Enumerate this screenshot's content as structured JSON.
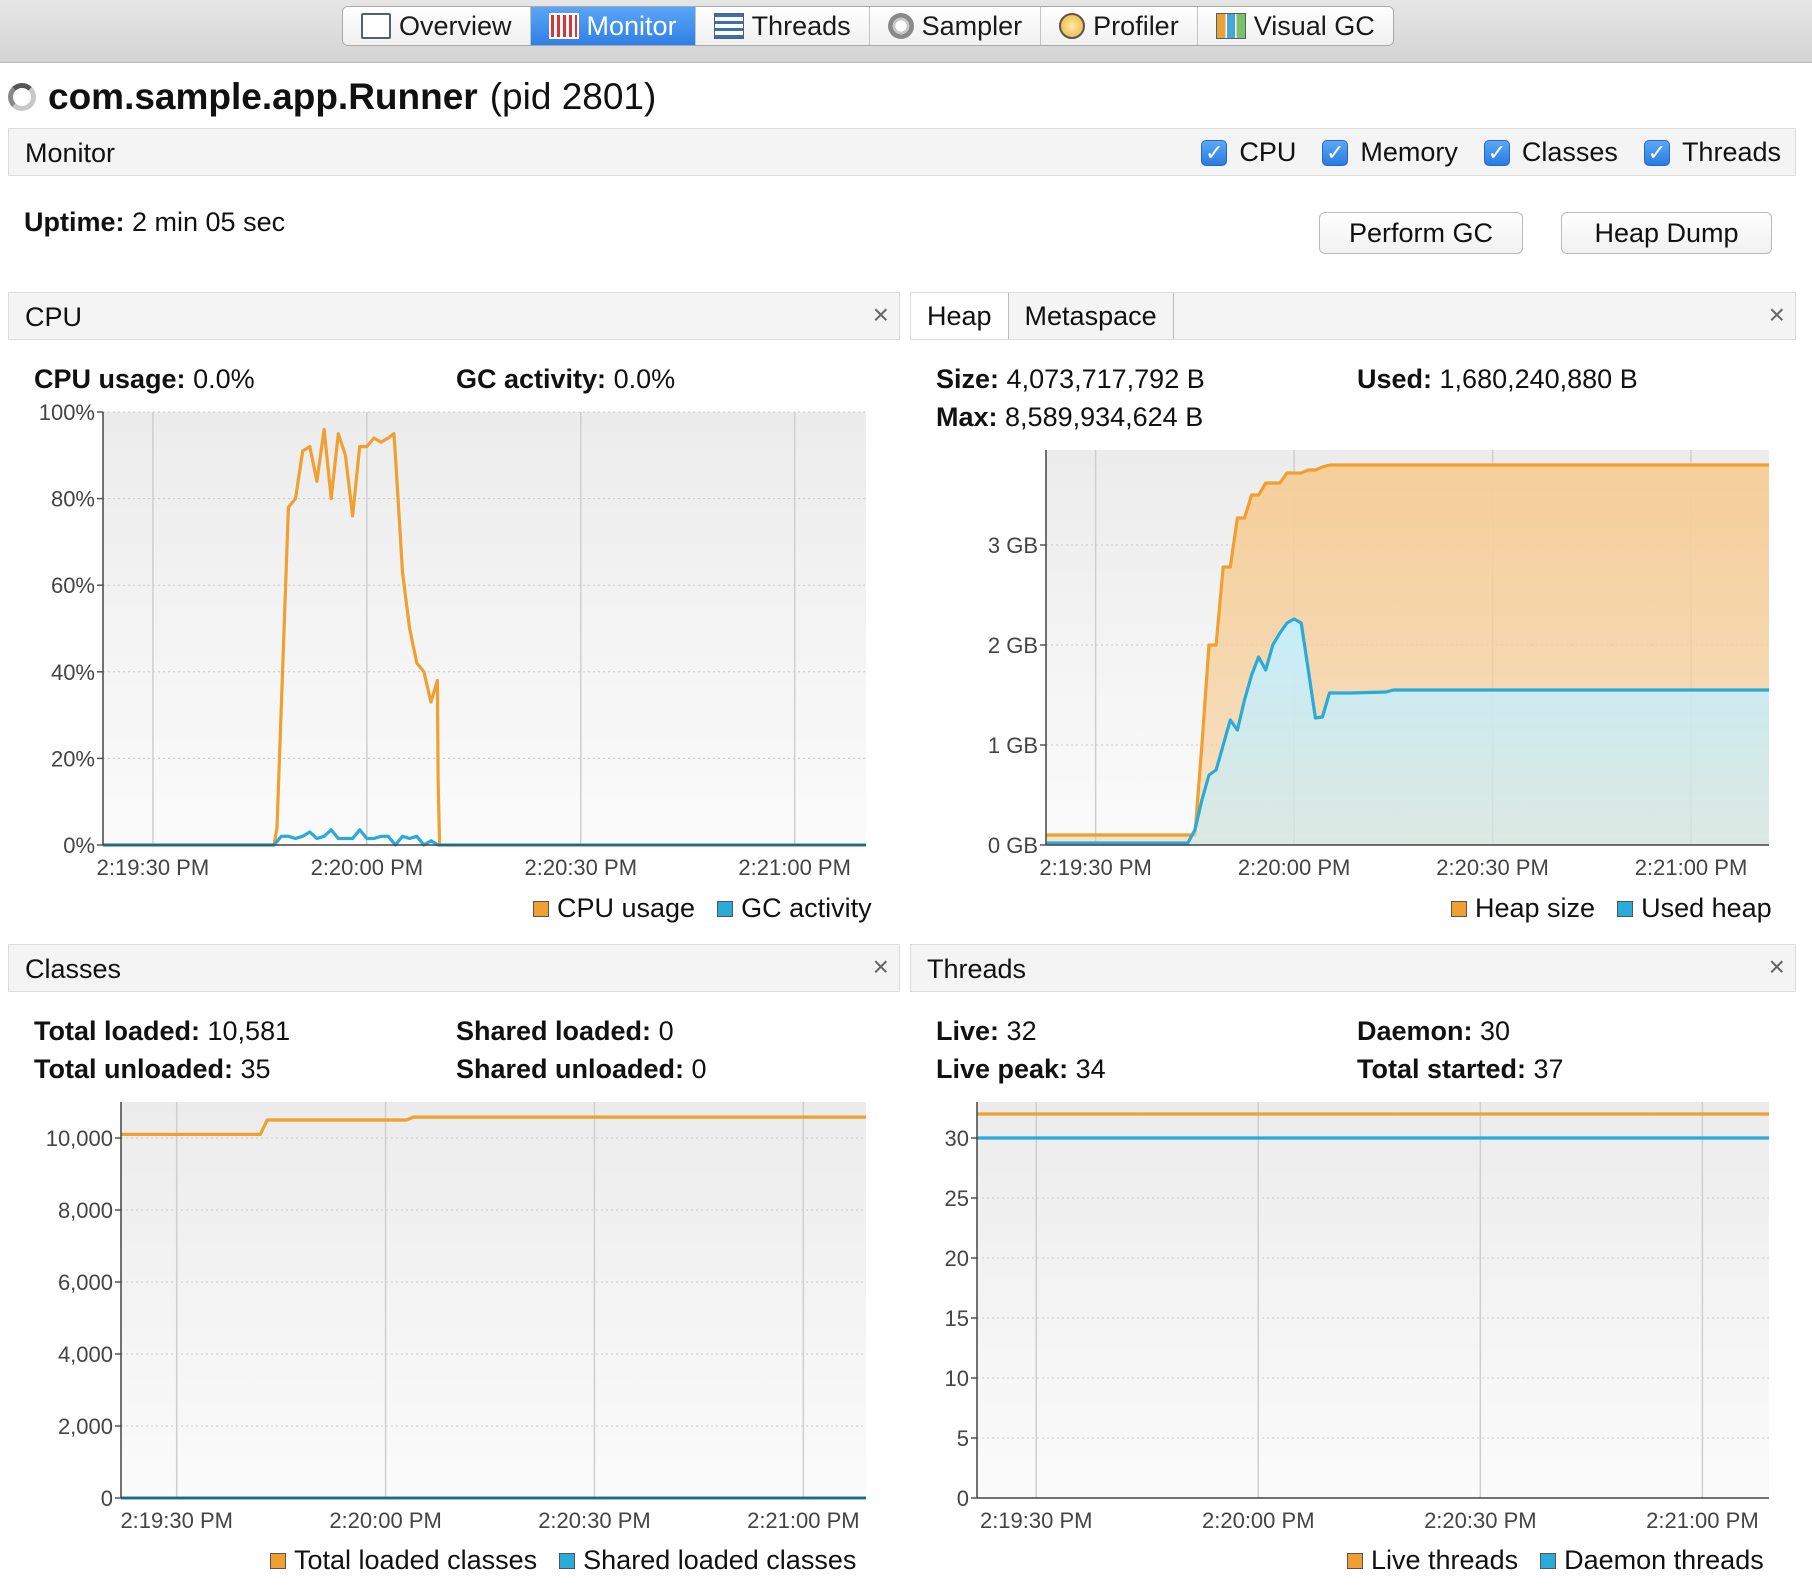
{
  "colors": {
    "orange": "#f0a030",
    "blue": "#2aaad8",
    "orange_fill": "#f6cf9a",
    "blue_fill": "#c6eefb"
  },
  "tabs": [
    {
      "label": "Overview",
      "icon": "overview-icon",
      "active": false
    },
    {
      "label": "Monitor",
      "icon": "monitor-icon",
      "active": true
    },
    {
      "label": "Threads",
      "icon": "threads-icon",
      "active": false
    },
    {
      "label": "Sampler",
      "icon": "sampler-icon",
      "active": false
    },
    {
      "label": "Profiler",
      "icon": "profiler-icon",
      "active": false
    },
    {
      "label": "Visual GC",
      "icon": "visual-gc-icon",
      "active": false
    }
  ],
  "app": {
    "name": "com.sample.app.Runner",
    "pid": "(pid 2801)"
  },
  "monitor_bar": {
    "label": "Monitor",
    "checks": [
      {
        "label": "CPU",
        "checked": true
      },
      {
        "label": "Memory",
        "checked": true
      },
      {
        "label": "Classes",
        "checked": true
      },
      {
        "label": "Threads",
        "checked": true
      }
    ]
  },
  "uptime": {
    "label": "Uptime:",
    "value": "2 min 05 sec"
  },
  "buttons": {
    "gc": "Perform GC",
    "heap_dump": "Heap Dump"
  },
  "close_glyph": "×",
  "cpu_panel": {
    "title": "CPU",
    "stats": {
      "usage_label": "CPU usage:",
      "usage_value": "0.0%",
      "gc_label": "GC activity:",
      "gc_value": "0.0%"
    }
  },
  "heap_panel": {
    "tabs": [
      "Heap",
      "Metaspace"
    ],
    "stats": {
      "size_label": "Size:",
      "size_value": "4,073,717,792 B",
      "used_label": "Used:",
      "used_value": "1,680,240,880 B",
      "max_label": "Max:",
      "max_value": "8,589,934,624 B"
    }
  },
  "classes_panel": {
    "title": "Classes",
    "stats": {
      "total_loaded_label": "Total loaded:",
      "total_loaded_value": "10,581",
      "shared_loaded_label": "Shared loaded:",
      "shared_loaded_value": "0",
      "total_unloaded_label": "Total unloaded:",
      "total_unloaded_value": "35",
      "shared_unloaded_label": "Shared unloaded:",
      "shared_unloaded_value": "0"
    }
  },
  "threads_panel": {
    "title": "Threads",
    "stats": {
      "live_label": "Live:",
      "live_value": "32",
      "daemon_label": "Daemon:",
      "daemon_value": "30",
      "peak_label": "Live peak:",
      "peak_value": "34",
      "started_label": "Total started:",
      "started_value": "37"
    }
  },
  "chart_data": [
    {
      "id": "cpu",
      "type": "line",
      "xlim": [
        -30,
        77
      ],
      "ylim": [
        0,
        100
      ],
      "y_ticks": [
        0,
        20,
        40,
        60,
        80,
        100
      ],
      "y_tick_labels": [
        "0%",
        "20%",
        "40%",
        "60%",
        "80%",
        "100%"
      ],
      "x_ticks": [
        -23,
        7,
        37,
        67
      ],
      "x_tick_labels": [
        "2:19:30 PM",
        "2:20:00 PM",
        "2:20:30 PM",
        "2:21:00 PM"
      ],
      "series": [
        {
          "name": "CPU usage",
          "color": "#f0a030",
          "fill": false,
          "x": [
            -30,
            -6,
            -5.6,
            -4,
            -3,
            -2,
            -1,
            0,
            1,
            2,
            3,
            4,
            5,
            6,
            7,
            8,
            9,
            10,
            10.8,
            11,
            12,
            13,
            14,
            15,
            16,
            16.9,
            17,
            17.2
          ],
          "y": [
            0,
            0,
            4,
            78,
            80,
            91,
            92,
            84,
            96,
            80,
            95,
            90,
            76,
            92,
            92,
            94,
            93,
            94,
            95,
            90,
            63,
            50,
            42,
            40,
            33,
            38,
            15,
            0
          ]
        },
        {
          "name": "GC activity",
          "color": "#2aaad8",
          "fill": false,
          "x": [
            -30,
            -6,
            -5,
            -4,
            -3,
            -2,
            -1,
            0,
            1,
            2,
            3,
            4,
            5,
            6,
            7,
            8,
            9,
            10,
            11,
            12,
            13,
            14,
            15,
            16,
            17,
            77
          ],
          "y": [
            0,
            0,
            2,
            2,
            1.5,
            2,
            3,
            1.5,
            2,
            3.5,
            1.5,
            1.5,
            1.5,
            3.5,
            1.5,
            1.5,
            2,
            2,
            0,
            2,
            1.5,
            2,
            0,
            1,
            0,
            0
          ]
        }
      ]
    },
    {
      "id": "heap",
      "type": "area",
      "xlim": [
        -30,
        72
      ],
      "ylim": [
        0,
        3.95
      ],
      "y_ticks": [
        0,
        1,
        2,
        3
      ],
      "y_tick_labels": [
        "0 GB",
        "1 GB",
        "2 GB",
        "3 GB"
      ],
      "x_ticks": [
        -23,
        5,
        33,
        61
      ],
      "x_tick_labels": [
        "2:19:30 PM",
        "2:20:00 PM",
        "2:20:30 PM",
        "2:21:00 PM"
      ],
      "series": [
        {
          "name": "Heap size",
          "color": "#f0a030",
          "fill": true,
          "fill_color": "#f6cf9a",
          "x": [
            -30,
            -9,
            -8,
            -7,
            -6,
            -5,
            -4,
            -3,
            -2,
            -1,
            0,
            1,
            2,
            3,
            4,
            5,
            6,
            7,
            8,
            9,
            10,
            11,
            12,
            13,
            72
          ],
          "y": [
            0.1,
            0.1,
            1.0,
            2.0,
            2.0,
            2.78,
            2.78,
            3.27,
            3.27,
            3.5,
            3.5,
            3.62,
            3.62,
            3.62,
            3.72,
            3.72,
            3.72,
            3.75,
            3.75,
            3.78,
            3.8,
            3.8,
            3.8,
            3.8,
            3.8
          ]
        },
        {
          "name": "Used heap",
          "color": "#2aaad8",
          "fill": true,
          "fill_color": "#c6eefb",
          "x": [
            -30,
            -10,
            -9,
            -8,
            -7,
            -6,
            -5,
            -4,
            -3,
            -2,
            -1,
            0,
            1,
            2,
            3,
            4,
            5,
            6,
            7,
            8,
            9,
            10,
            11,
            12,
            13,
            18,
            19,
            72
          ],
          "y": [
            0.02,
            0.02,
            0.15,
            0.45,
            0.7,
            0.75,
            1.0,
            1.25,
            1.15,
            1.45,
            1.7,
            1.88,
            1.75,
            2.0,
            2.12,
            2.22,
            2.26,
            2.22,
            1.75,
            1.27,
            1.28,
            1.52,
            1.52,
            1.52,
            1.52,
            1.53,
            1.55,
            1.55
          ]
        }
      ]
    },
    {
      "id": "classes",
      "type": "line",
      "xlim": [
        -30,
        77
      ],
      "ylim": [
        0,
        11000
      ],
      "y_ticks": [
        0,
        2000,
        4000,
        6000,
        8000,
        10000
      ],
      "y_tick_labels": [
        "0",
        "2,000",
        "4,000",
        "6,000",
        "8,000",
        "10,000"
      ],
      "x_ticks": [
        -22,
        8,
        38,
        68
      ],
      "x_tick_labels": [
        "2:19:30 PM",
        "2:20:00 PM",
        "2:20:30 PM",
        "2:21:00 PM"
      ],
      "series": [
        {
          "name": "Total loaded classes",
          "color": "#f0a030",
          "fill": false,
          "x": [
            -30,
            -10,
            -9,
            11,
            12,
            77
          ],
          "y": [
            10100,
            10100,
            10500,
            10500,
            10581,
            10581
          ]
        },
        {
          "name": "Shared loaded classes",
          "color": "#2aaad8",
          "fill": false,
          "x": [
            -30,
            77
          ],
          "y": [
            0,
            0
          ]
        }
      ]
    },
    {
      "id": "threads",
      "type": "line",
      "xlim": [
        -30,
        77
      ],
      "ylim": [
        0,
        33
      ],
      "y_ticks": [
        0,
        5,
        10,
        15,
        20,
        25,
        30
      ],
      "y_tick_labels": [
        "0",
        "5",
        "10",
        "15",
        "20",
        "25",
        "30"
      ],
      "x_ticks": [
        -22,
        8,
        38,
        68
      ],
      "x_tick_labels": [
        "2:19:30 PM",
        "2:20:00 PM",
        "2:20:30 PM",
        "2:21:00 PM"
      ],
      "series": [
        {
          "name": "Live threads",
          "color": "#f0a030",
          "fill": false,
          "x": [
            -30,
            77
          ],
          "y": [
            32,
            32
          ]
        },
        {
          "name": "Daemon threads",
          "color": "#2aaad8",
          "fill": false,
          "x": [
            -30,
            77
          ],
          "y": [
            30,
            30
          ]
        }
      ]
    }
  ]
}
